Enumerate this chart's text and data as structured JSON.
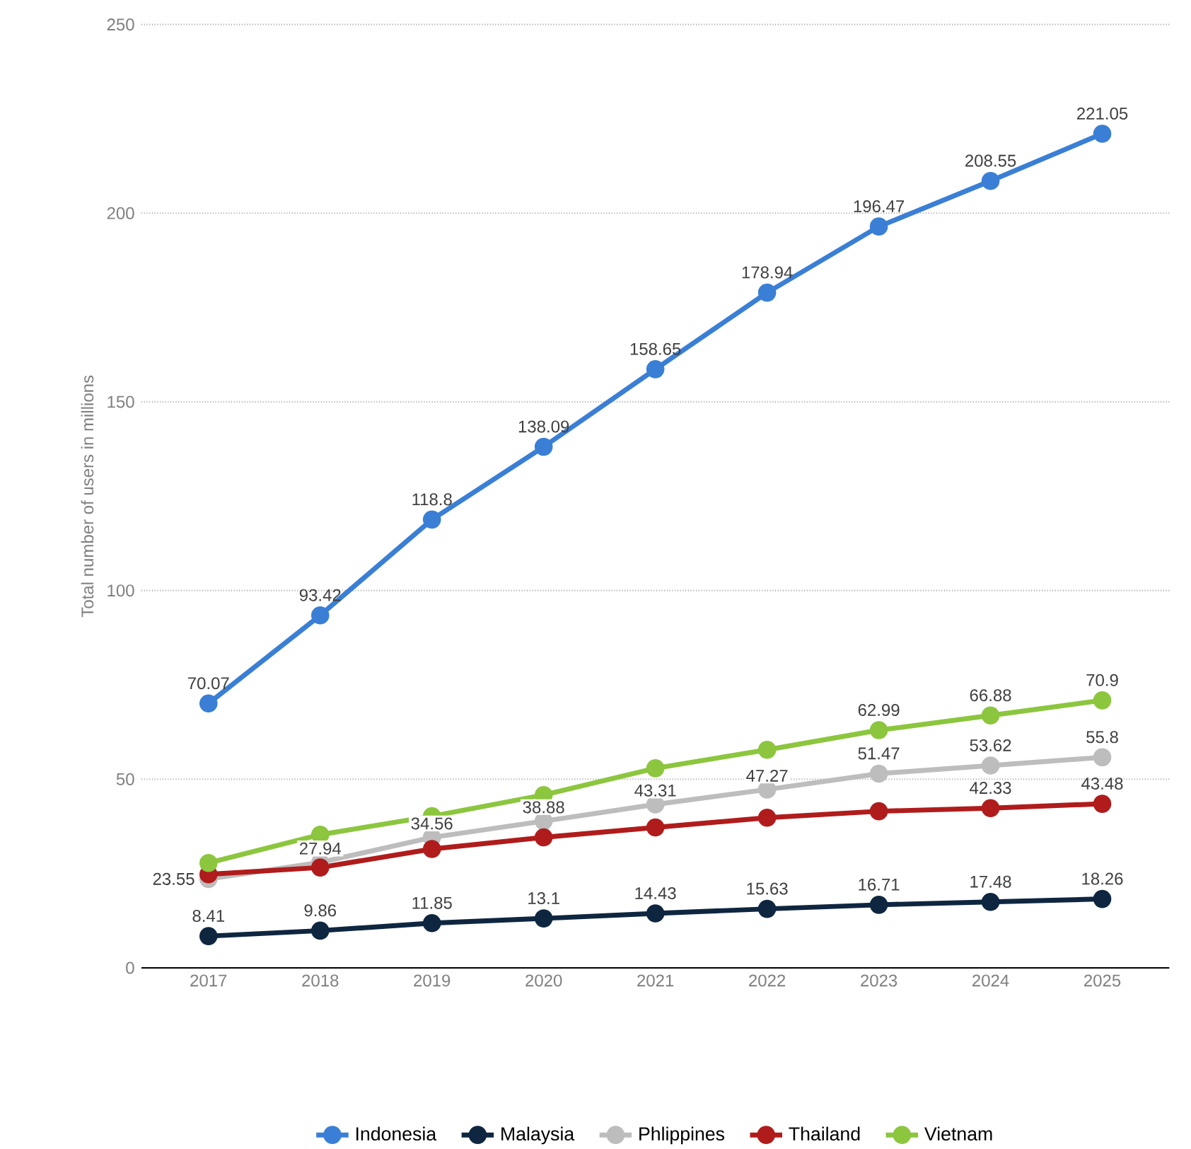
{
  "chart_data": {
    "type": "line",
    "ylabel": "Total number of users in millions",
    "categories": [
      "2017",
      "2018",
      "2019",
      "2020",
      "2021",
      "2022",
      "2023",
      "2024",
      "2025"
    ],
    "series": [
      {
        "name": "Indonesia",
        "color": "#3a7fd5",
        "values": [
          70.07,
          93.42,
          118.8,
          138.09,
          158.65,
          178.94,
          196.47,
          208.55,
          221.05
        ],
        "value_labels": [
          "70.07",
          "93.42",
          "118.8",
          "138.09",
          "158.65",
          "178.94",
          "196.47",
          "208.55",
          "221.05"
        ]
      },
      {
        "name": "Malaysia",
        "color": "#0f2640",
        "values": [
          8.41,
          9.86,
          11.85,
          13.1,
          14.43,
          15.63,
          16.71,
          17.48,
          18.26
        ],
        "value_labels": [
          "8.41",
          "9.86",
          "11.85",
          "13.1",
          "14.43",
          "15.63",
          "16.71",
          "17.48",
          "18.26"
        ]
      },
      {
        "name": "Phlippines",
        "color": "#bdbdbd",
        "values": [
          23.55,
          27.94,
          34.56,
          38.88,
          43.31,
          47.27,
          51.47,
          53.62,
          55.8
        ],
        "value_labels": [
          "23.55",
          "27.94",
          "34.56",
          "38.88",
          "43.31",
          "47.27",
          "51.47",
          "53.62",
          "55.8"
        ]
      },
      {
        "name": "Thailand",
        "color": "#b01c1c",
        "values": [
          24.8,
          26.6,
          31.5,
          34.6,
          37.2,
          39.8,
          41.5,
          42.33,
          43.48
        ],
        "value_labels": [
          null,
          null,
          null,
          null,
          null,
          null,
          null,
          "42.33",
          "43.48"
        ]
      },
      {
        "name": "Vietnam",
        "color": "#8cc63e",
        "values": [
          27.8,
          35.3,
          40.2,
          45.8,
          52.9,
          57.8,
          62.99,
          66.88,
          70.9
        ],
        "value_labels": [
          null,
          null,
          null,
          null,
          null,
          null,
          "62.99",
          "66.88",
          "70.9"
        ]
      }
    ],
    "ylim": [
      0,
      250
    ],
    "yticks": [
      0,
      50,
      100,
      150,
      200,
      250
    ],
    "grid": "y",
    "legend": "bottom",
    "marker": "circle",
    "line_style": "solid"
  }
}
